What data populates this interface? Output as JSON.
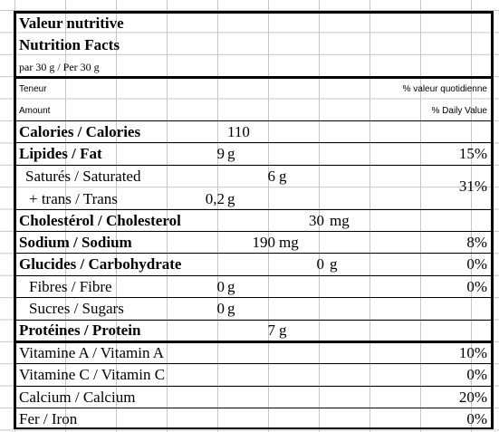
{
  "header": {
    "title_fr": "Valeur nutritive",
    "title_en": "Nutrition Facts",
    "serving": "par 30 g / Per 30 g"
  },
  "labels": {
    "teneur": "Teneur",
    "amount": "Amount",
    "dv_fr": "% valeur quotidienne",
    "dv_en": "% Daily Value"
  },
  "nutrients": {
    "calories": {
      "label": "Calories / Calories",
      "amount": "110"
    },
    "fat": {
      "label": "Lipides / Fat",
      "amount": "9",
      "unit": "g",
      "dv": "15%"
    },
    "saturated": {
      "label": "Saturés / Saturated",
      "amount": "6",
      "unit": "g"
    },
    "trans": {
      "label": "+ trans / Trans",
      "amount": "0,2",
      "unit": "g"
    },
    "sat_trans_dv": "31%",
    "cholesterol": {
      "label": "Cholestérol / Cholesterol",
      "amount": "30",
      "unit": "mg"
    },
    "sodium": {
      "label": "Sodium / Sodium",
      "amount": "190",
      "unit": "mg",
      "dv": "8%"
    },
    "carbohydrate": {
      "label": "Glucides / Carbohydrate",
      "amount": "0",
      "unit": "g",
      "dv": "0%"
    },
    "fibre": {
      "label": "Fibres / Fibre",
      "amount": "0",
      "unit": "g",
      "dv": "0%"
    },
    "sugars": {
      "label": "Sucres / Sugars",
      "amount": "0",
      "unit": "g"
    },
    "protein": {
      "label": "Protéines / Protein",
      "amount": "7",
      "unit": "g"
    }
  },
  "vitamins": {
    "vit_a": {
      "label": "Vitamine A / Vitamin A",
      "dv": "10%"
    },
    "vit_c": {
      "label": "Vitamine C / Vitamin C",
      "dv": "0%"
    },
    "calcium": {
      "label": "Calcium / Calcium",
      "dv": "20%"
    },
    "iron": {
      "label": "Fer / Iron",
      "dv": "0%"
    }
  }
}
